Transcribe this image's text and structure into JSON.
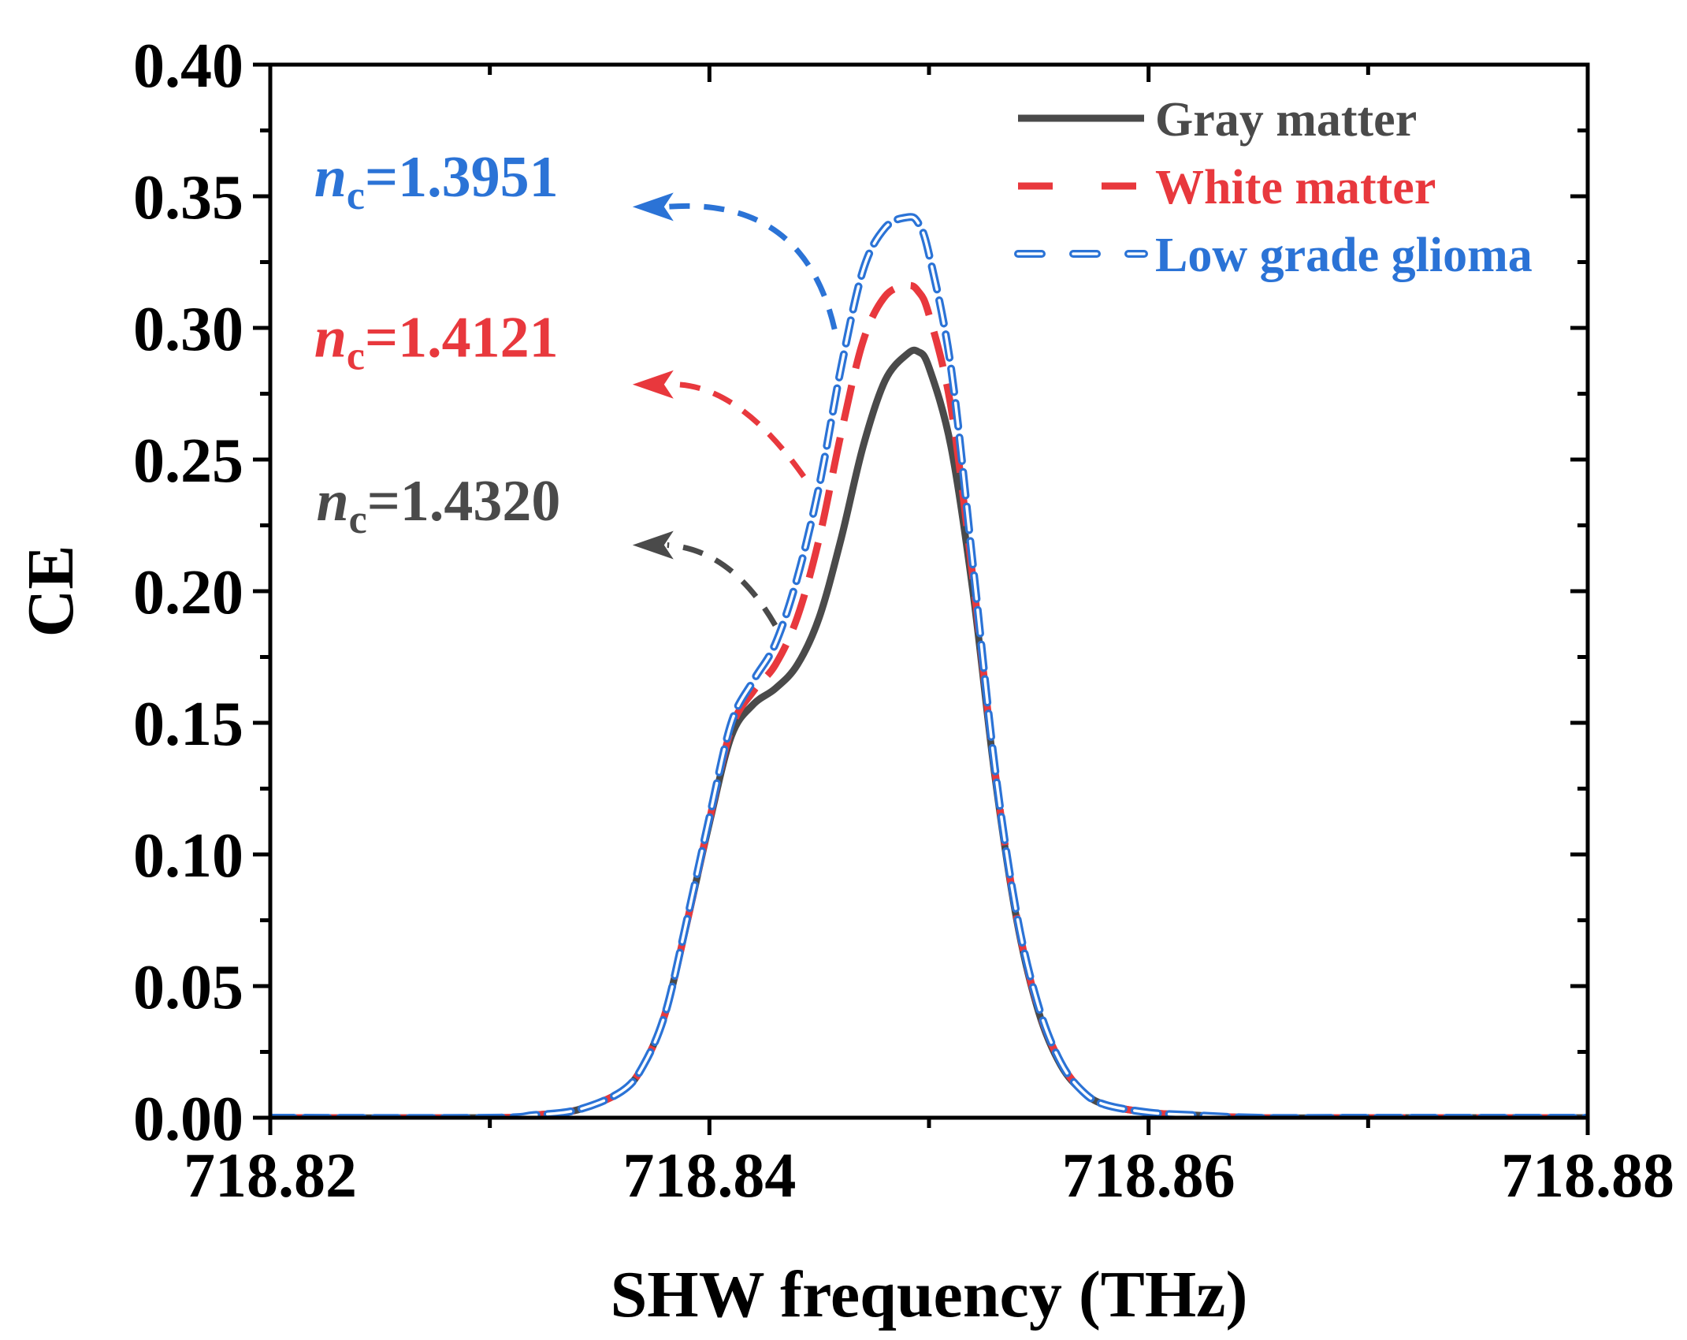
{
  "chart_data": {
    "type": "line",
    "title": "",
    "xlabel": "SHW frequency (THz)",
    "ylabel": "CE",
    "xlim": [
      718.82,
      718.88
    ],
    "ylim": [
      0.0,
      0.4
    ],
    "x_ticks": [
      718.82,
      718.84,
      718.86,
      718.88
    ],
    "x_tick_labels": [
      "718.82",
      "718.84",
      "718.86",
      "718.88"
    ],
    "y_ticks": [
      0.0,
      0.05,
      0.1,
      0.15,
      0.2,
      0.25,
      0.3,
      0.35,
      0.4
    ],
    "y_tick_labels": [
      "0.00",
      "0.05",
      "0.10",
      "0.15",
      "0.20",
      "0.25",
      "0.30",
      "0.35",
      "0.40"
    ],
    "grid": false,
    "legend_position": "top-right",
    "series": [
      {
        "name": "Gray matter",
        "color": "#4a4a4a",
        "style": "solid",
        "x": [
          718.82,
          718.83,
          718.832,
          718.834,
          718.836,
          718.837,
          718.838,
          718.839,
          718.84,
          718.841,
          718.842,
          718.843,
          718.844,
          718.845,
          718.846,
          718.847,
          718.848,
          718.849,
          718.8495,
          718.85,
          718.851,
          718.852,
          718.853,
          718.854,
          718.855,
          718.856,
          718.857,
          718.858,
          718.86,
          718.862,
          718.865,
          718.87,
          718.88
        ],
        "y": [
          0.0,
          0.0,
          0.001,
          0.003,
          0.01,
          0.02,
          0.04,
          0.075,
          0.112,
          0.145,
          0.157,
          0.163,
          0.172,
          0.19,
          0.22,
          0.255,
          0.28,
          0.29,
          0.291,
          0.285,
          0.255,
          0.2,
          0.13,
          0.075,
          0.04,
          0.02,
          0.01,
          0.005,
          0.002,
          0.001,
          0.0,
          0.0,
          0.0
        ]
      },
      {
        "name": "White matter",
        "color": "#e8383d",
        "style": "dashed",
        "x": [
          718.82,
          718.83,
          718.832,
          718.834,
          718.836,
          718.837,
          718.838,
          718.839,
          718.84,
          718.841,
          718.842,
          718.843,
          718.844,
          718.845,
          718.846,
          718.847,
          718.848,
          718.849,
          718.8495,
          718.85,
          718.851,
          718.852,
          718.853,
          718.854,
          718.855,
          718.856,
          718.857,
          718.858,
          718.86,
          718.862,
          718.865,
          718.87,
          718.88
        ],
        "y": [
          0.0,
          0.0,
          0.001,
          0.003,
          0.01,
          0.02,
          0.04,
          0.075,
          0.113,
          0.148,
          0.162,
          0.172,
          0.19,
          0.22,
          0.26,
          0.295,
          0.312,
          0.316,
          0.314,
          0.305,
          0.27,
          0.205,
          0.132,
          0.076,
          0.041,
          0.021,
          0.01,
          0.005,
          0.002,
          0.001,
          0.0,
          0.0,
          0.0
        ]
      },
      {
        "name": "Low grade glioma",
        "color": "#2b73d6",
        "style": "short-dash",
        "x": [
          718.82,
          718.83,
          718.832,
          718.834,
          718.836,
          718.837,
          718.838,
          718.839,
          718.84,
          718.841,
          718.842,
          718.843,
          718.844,
          718.845,
          718.846,
          718.847,
          718.848,
          718.849,
          718.8495,
          718.85,
          718.851,
          718.852,
          718.853,
          718.854,
          718.855,
          718.856,
          718.857,
          718.858,
          718.86,
          718.862,
          718.865,
          718.87,
          718.88
        ],
        "y": [
          0.0,
          0.0,
          0.001,
          0.003,
          0.01,
          0.02,
          0.04,
          0.076,
          0.114,
          0.15,
          0.166,
          0.18,
          0.205,
          0.24,
          0.285,
          0.322,
          0.338,
          0.342,
          0.34,
          0.328,
          0.285,
          0.21,
          0.133,
          0.077,
          0.042,
          0.021,
          0.01,
          0.005,
          0.002,
          0.001,
          0.0,
          0.0,
          0.0
        ]
      }
    ],
    "annotations": [
      {
        "italic": "n",
        "sub": "c",
        "text": "=1.3951",
        "color": "#2b73d6",
        "label_x": 718.822,
        "label_y": 0.35,
        "from_x": 718.8457,
        "from_y": 0.2995,
        "ctrl_x": 718.8443,
        "ctrl_y": 0.35,
        "to_x": 718.8365,
        "to_y": 0.346
      },
      {
        "italic": "n",
        "sub": "c",
        "text": "=1.4121",
        "color": "#e8383d",
        "label_x": 718.822,
        "label_y": 0.289,
        "from_x": 718.8443,
        "from_y": 0.2435,
        "ctrl_x": 718.8412,
        "ctrl_y": 0.28,
        "to_x": 718.8365,
        "to_y": 0.2785
      },
      {
        "italic": "n",
        "sub": "c",
        "text": "=1.4320",
        "color": "#4a4a4a",
        "label_x": 718.8221,
        "label_y": 0.227,
        "from_x": 718.843,
        "from_y": 0.187,
        "ctrl_x": 718.841,
        "ctrl_y": 0.216,
        "to_x": 718.8365,
        "to_y": 0.2175
      }
    ]
  }
}
